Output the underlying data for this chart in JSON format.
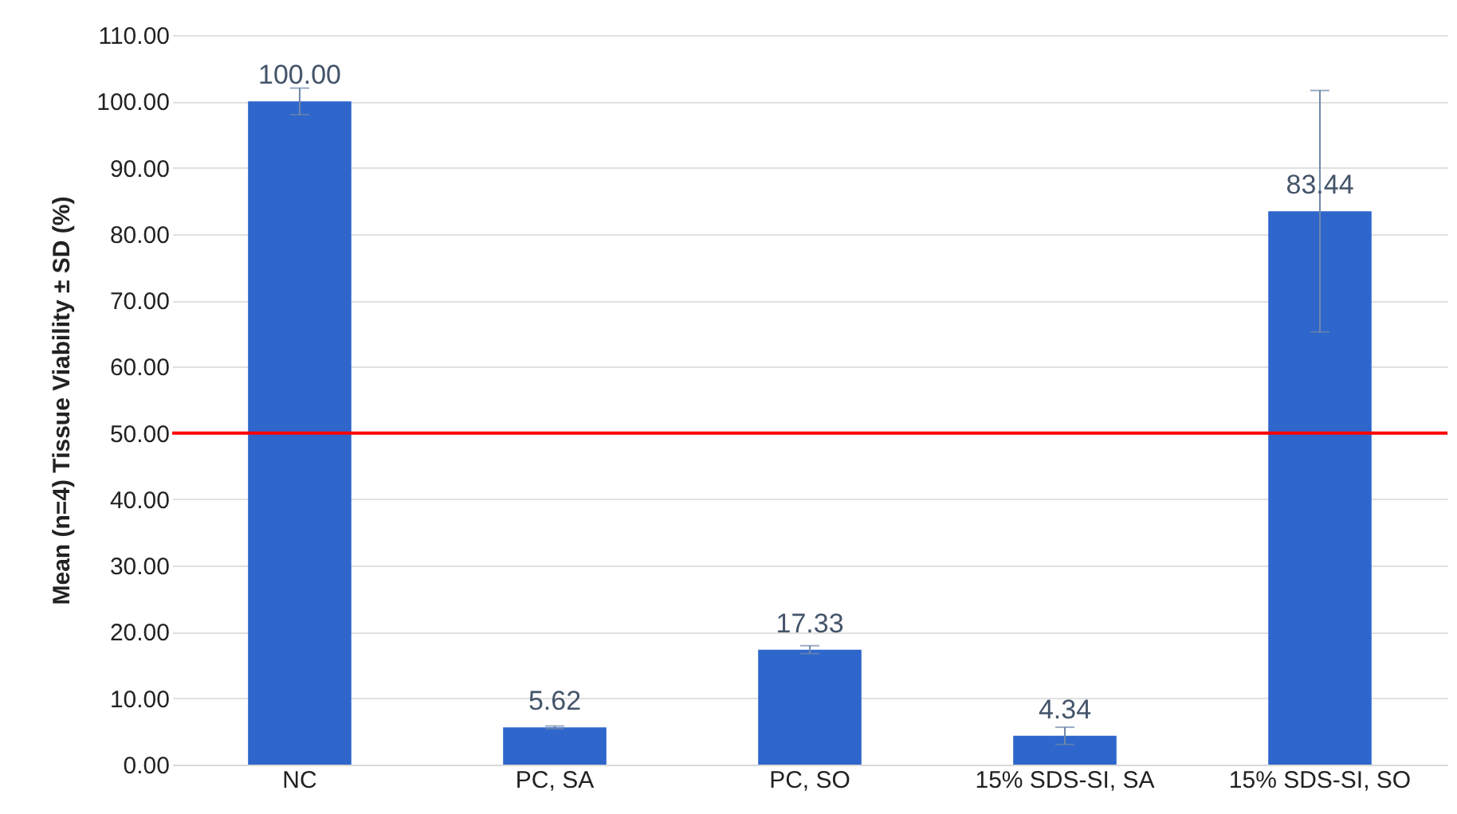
{
  "chart_data": {
    "type": "bar",
    "ylabel": "Mean (n=4) Tissue Viability ± SD (%)",
    "categories": [
      "NC",
      "PC, SA",
      "PC, SO",
      "15% SDS-SI, SA",
      "15% SDS-SI, SO"
    ],
    "values": [
      100.0,
      5.62,
      17.33,
      4.34,
      83.44
    ],
    "errors": [
      2,
      0.2,
      0.6,
      1.3,
      18.2
    ],
    "color": "#2e66cc",
    "value_labels": [
      "100.00",
      "5.62",
      "17.33",
      "4.34",
      "83.44"
    ],
    "ylim": [
      0,
      110
    ],
    "yticks": [
      {
        "value": 0,
        "label": "0.00"
      },
      {
        "value": 10,
        "label": "10.00"
      },
      {
        "value": 20,
        "label": "20.00"
      },
      {
        "value": 30,
        "label": "30.00"
      },
      {
        "value": 40,
        "label": "40.00"
      },
      {
        "value": 50,
        "label": "50.00"
      },
      {
        "value": 60,
        "label": "60.00"
      },
      {
        "value": 70,
        "label": "70.00"
      },
      {
        "value": 80,
        "label": "80.00"
      },
      {
        "value": 90,
        "label": "90.00"
      },
      {
        "value": 100,
        "label": "100.00"
      },
      {
        "value": 110,
        "label": "110.00"
      }
    ],
    "ref_lines": [
      {
        "axis": "y",
        "value": 50,
        "color": "#ff0000"
      }
    ],
    "grid": "y"
  }
}
